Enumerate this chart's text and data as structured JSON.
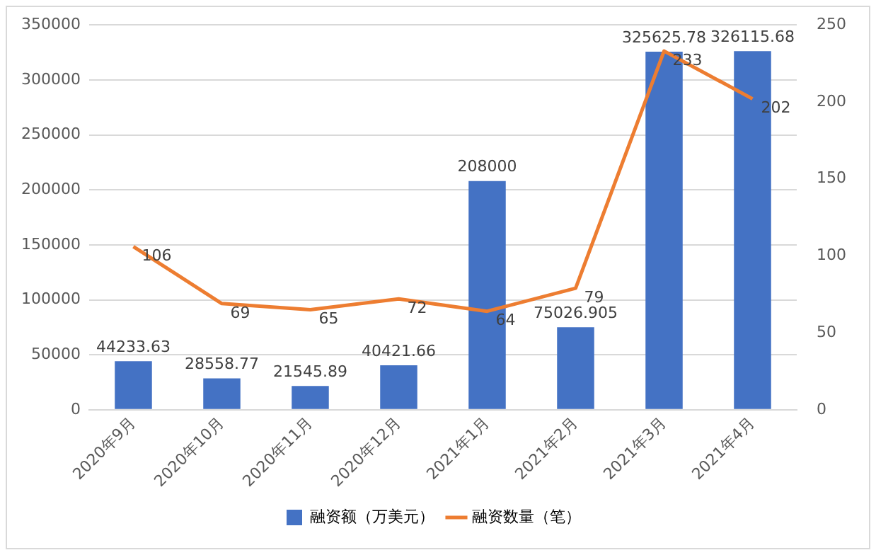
{
  "chart_data": {
    "type": "bar",
    "categories": [
      "2020年9月",
      "2020年10月",
      "2020年11月",
      "2020年12月",
      "2021年1月",
      "2021年2月",
      "2021年3月",
      "2021年4月"
    ],
    "series": [
      {
        "name": "融资额（万美元）",
        "color": "#4472c4",
        "values": [
          44233.63,
          28558.77,
          21545.89,
          40421.66,
          208000,
          75026.905,
          325625.78,
          326115.68
        ]
      },
      {
        "name": "融资数量（笔）",
        "type": "line",
        "axis": "y2",
        "color": "#ed7d31",
        "values": [
          106,
          69,
          65,
          72,
          64,
          79,
          233,
          202
        ]
      }
    ],
    "ylim": [
      0,
      350000
    ],
    "yticks": [
      0,
      50000,
      100000,
      150000,
      200000,
      250000,
      300000,
      350000
    ],
    "y2lim": [
      0,
      250
    ],
    "y2ticks": [
      0,
      50,
      100,
      150,
      200,
      250
    ],
    "grid": "y",
    "legend": "bottom",
    "data_labels": true,
    "marker": "none"
  }
}
